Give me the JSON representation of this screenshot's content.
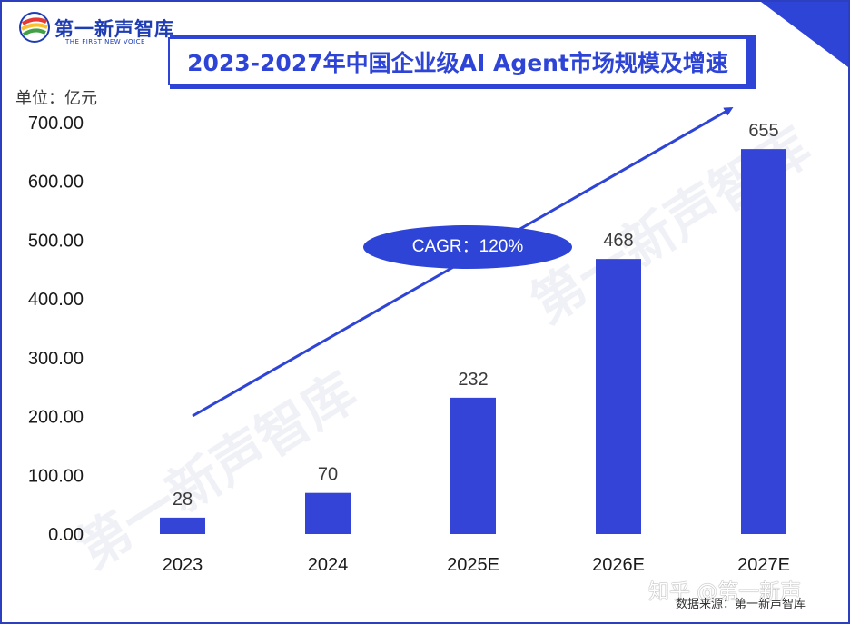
{
  "brand": {
    "name": "第一新声智库",
    "tagline": "THE FIRST NEW VOICE"
  },
  "title": "2023-2027年中国企业级AI Agent市场规模及增速",
  "unit_label": "单位：亿元",
  "cagr_label": "CAGR：120%",
  "source": "数据来源：第一新声智库",
  "watermark_text": "知乎 @第一新声",
  "colors": {
    "bar": "#3444d6",
    "accent": "#2e44d6",
    "frame": "#2b3fbf"
  },
  "chart_data": {
    "type": "bar",
    "title": "2023-2027年中国企业级AI Agent市场规模及增速",
    "categories": [
      "2023",
      "2024",
      "2025E",
      "2026E",
      "2027E"
    ],
    "values": [
      28,
      70,
      232,
      468,
      655
    ],
    "value_labels": [
      "28",
      "70",
      "232",
      "468",
      "655"
    ],
    "ylabel": "单位：亿元",
    "xlabel": "",
    "ylim": [
      0,
      700
    ],
    "yticks": [
      0,
      100,
      200,
      300,
      400,
      500,
      600,
      700
    ],
    "ytick_labels": [
      "0.00",
      "100.00",
      "200.00",
      "300.00",
      "400.00",
      "500.00",
      "600.00",
      "700.00"
    ],
    "grid": false,
    "legend": "none",
    "annotations": [
      {
        "text": "CAGR：120%",
        "kind": "trend-arrow"
      }
    ]
  }
}
